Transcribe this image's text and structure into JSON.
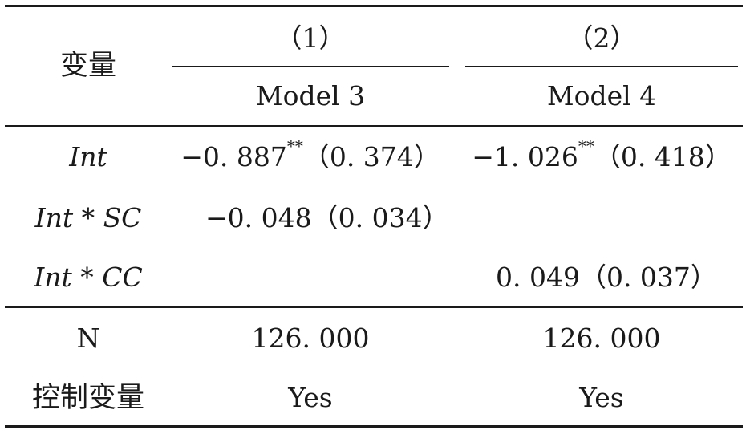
{
  "header": {
    "variable_label": "变量",
    "col1_number": "（1）",
    "col2_number": "（2）",
    "col1_model": "Model 3",
    "col2_model": "Model 4"
  },
  "rows": [
    {
      "label": "Int",
      "col1_value": "−0. 887",
      "col1_stars": "**",
      "col1_se": "（0. 374）",
      "col2_value": "−1. 026",
      "col2_stars": "**",
      "col2_se": "（0. 418）"
    },
    {
      "label": "Int * SC",
      "col1_value": "−0. 048（0. 034）",
      "col2_value": ""
    },
    {
      "label": "Int * CC",
      "col1_value": "",
      "col2_value": "0. 049（0. 037）"
    }
  ],
  "footer": [
    {
      "label": "N",
      "col1": "126. 000",
      "col2": "126. 000"
    },
    {
      "label": "控制变量",
      "col1": "Yes",
      "col2": "Yes"
    }
  ]
}
